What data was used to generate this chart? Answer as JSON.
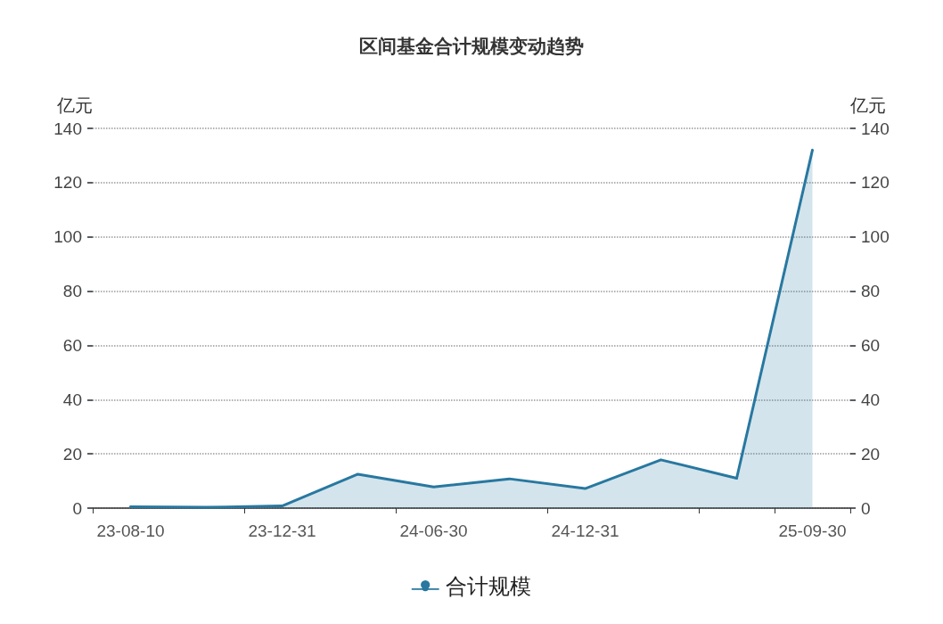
{
  "chart_data": {
    "type": "area",
    "title": "区间基金合计规模变动趋势",
    "ylabel": "亿元",
    "y2label": "亿元",
    "categories": [
      "23-08-10",
      null,
      "23-12-31",
      null,
      "24-06-30",
      null,
      "24-12-31",
      null,
      null,
      "25-09-30"
    ],
    "series": [
      {
        "name": "合计规模",
        "color": "#2878a0",
        "values": [
          0.5,
          0.3,
          0.8,
          12.5,
          7.8,
          10.8,
          7.2,
          17.8,
          11,
          132
        ]
      }
    ],
    "ylim": [
      0,
      140
    ],
    "yticks": [
      0,
      20,
      40,
      60,
      80,
      100,
      120,
      140
    ],
    "y2lim": [
      0,
      140
    ],
    "y2ticks": [
      0,
      20,
      40,
      60,
      80,
      100,
      120,
      140
    ],
    "grid": "y",
    "legend": "bottom",
    "marker": "none",
    "line_style": "solid"
  }
}
